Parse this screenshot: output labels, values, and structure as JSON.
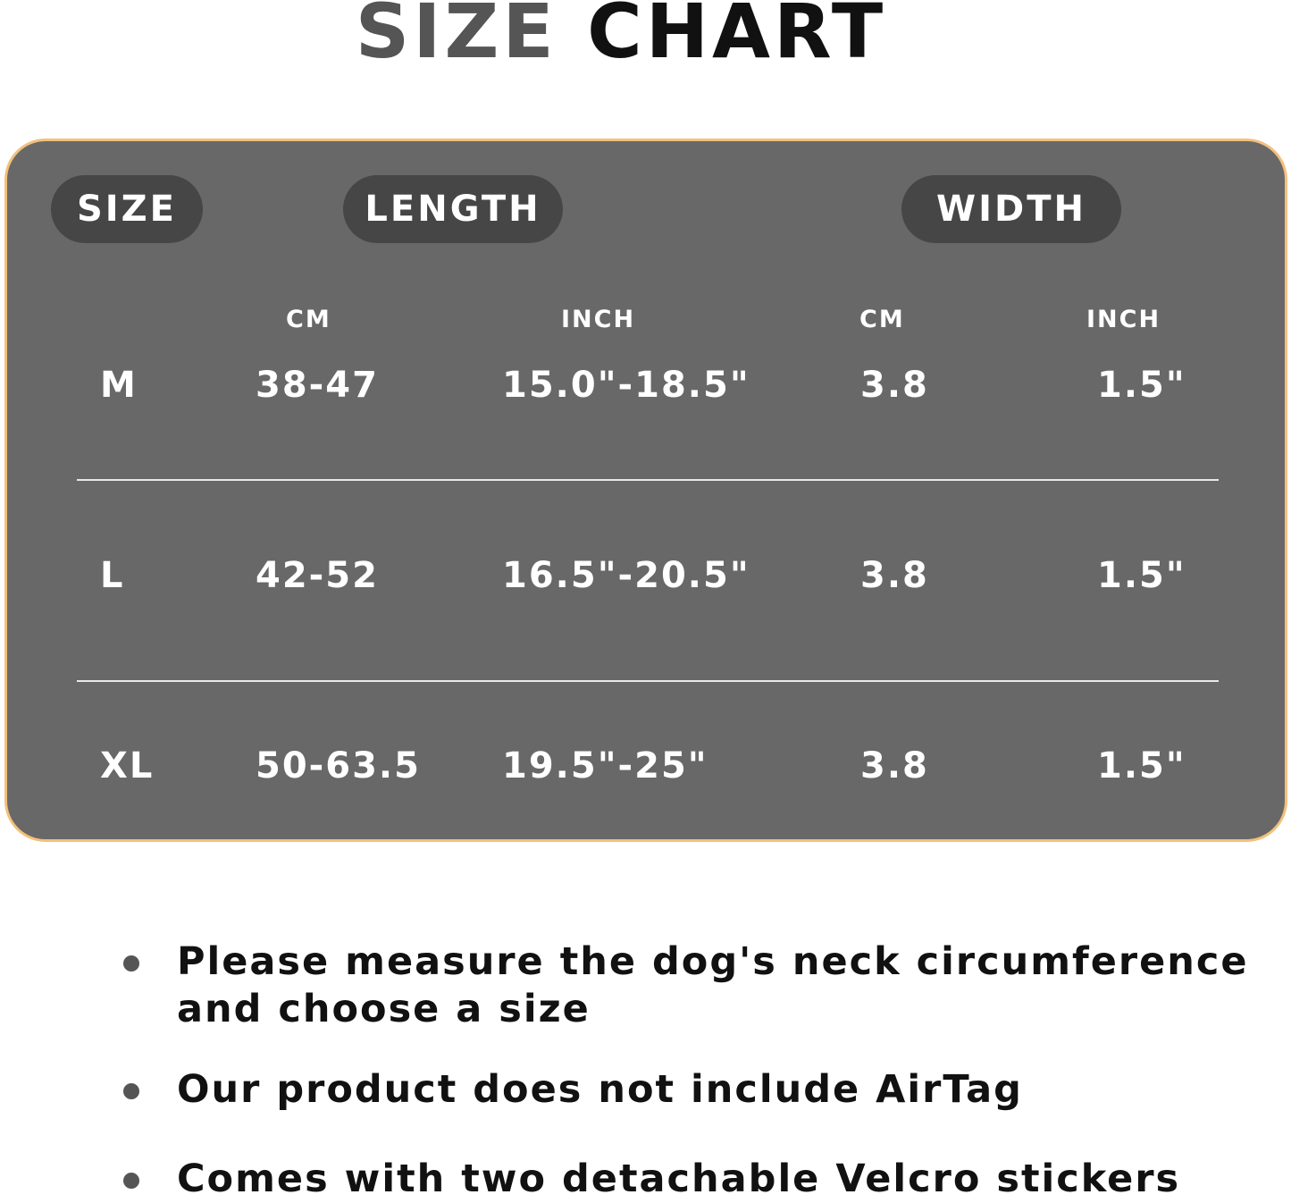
{
  "title": {
    "part1": "SIZE",
    "part2": "CHART"
  },
  "colors": {
    "panel": "#686868",
    "pill": "#464646",
    "border": "#f3c07c",
    "title_gray": "#555555"
  },
  "table": {
    "headers": {
      "size": "SIZE",
      "length": "LENGTH",
      "width": "WIDTH"
    },
    "subheaders": {
      "length_cm": "CM",
      "length_inch": "INCH",
      "width_cm": "CM",
      "width_inch": "INCH"
    },
    "rows": [
      {
        "size": "M",
        "length_cm": "38-47",
        "length_inch": "15.0\"-18.5\"",
        "width_cm": "3.8",
        "width_inch": "1.5\""
      },
      {
        "size": "L",
        "length_cm": "42-52",
        "length_inch": "16.5\"-20.5\"",
        "width_cm": "3.8",
        "width_inch": "1.5\""
      },
      {
        "size": "XL",
        "length_cm": "50-63.5",
        "length_inch": "19.5\"-25\"",
        "width_cm": "3.8",
        "width_inch": "1.5\""
      }
    ]
  },
  "notes": [
    {
      "line1": "Please measure the dog's neck circumference",
      "line2": "and choose a size"
    },
    {
      "line1": "Our product does not include AirTag"
    },
    {
      "line1": "Comes with two detachable Velcro stickers"
    }
  ]
}
